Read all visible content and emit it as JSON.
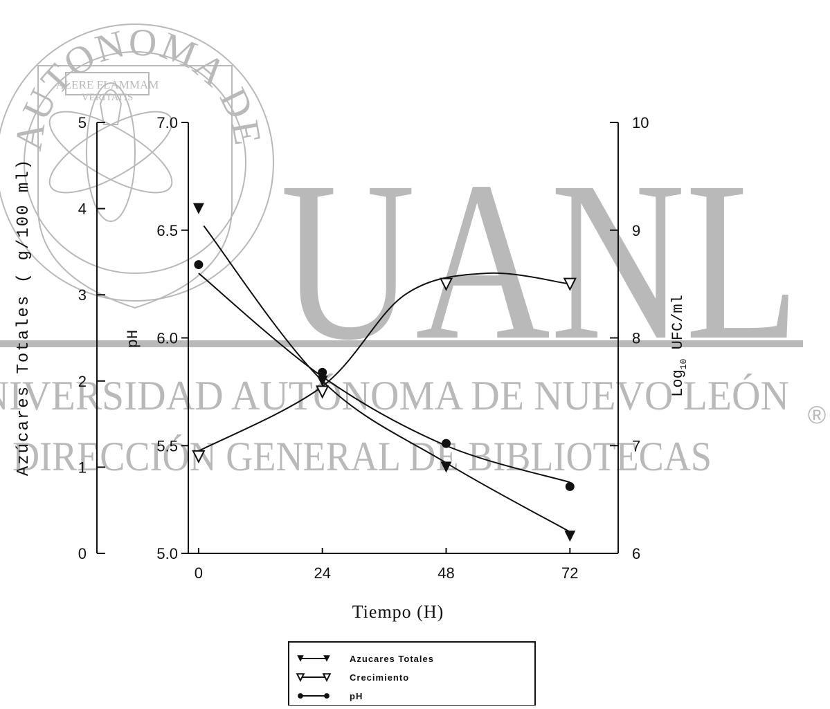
{
  "watermark": {
    "seal_ring_text": "AUTONOMA DE NUEVO LEON",
    "seal_motto_top": "ALERE FLAMMAM",
    "seal_motto_bottom": "VERITATIS",
    "big_letters": "UANL",
    "line1": "UNIVERSIDAD AUTÓNOMA DE NUEVO LEÓN",
    "line2": "DIRECCIÓN GENERAL DE BIBLIOTECAS",
    "registered": "®",
    "color": "#b9b9b9"
  },
  "chart_data": {
    "type": "line",
    "x": [
      0,
      24,
      48,
      72
    ],
    "xticks": [
      "0",
      "24",
      "48",
      "72"
    ],
    "xlabel": "Tiempo (H)",
    "xlim": [
      -2,
      78
    ],
    "axes": {
      "sugar": {
        "label": "Azúcares Totales ( g/100 ml)",
        "lim": [
          0,
          5
        ],
        "ticks": [
          "0",
          "1",
          "2",
          "3",
          "4",
          "5"
        ]
      },
      "ph": {
        "label": "pH",
        "lim": [
          5.0,
          7.0
        ],
        "ticks": [
          "5.0",
          "5.5",
          "6.0",
          "6.5",
          "7.0"
        ]
      },
      "log": {
        "label_main": "Log",
        "label_sub": "10",
        "label_rest": " UFC/ml",
        "lim": [
          6,
          10
        ],
        "ticks": [
          "6",
          "7",
          "8",
          "9",
          "10"
        ]
      }
    },
    "series": [
      {
        "name": "Azucares Totales",
        "axis": "sugar",
        "marker": "filled-down-triangle",
        "values": [
          4.0,
          2.0,
          1.0,
          0.2
        ],
        "curve": [
          [
            1,
            3.8
          ],
          [
            24,
            2.0
          ],
          [
            48,
            1.05
          ],
          [
            72,
            0.25
          ]
        ]
      },
      {
        "name": "Crecimiento",
        "axis": "log",
        "marker": "open-down-triangle",
        "values": [
          6.9,
          7.5,
          8.5,
          8.5
        ],
        "curve": [
          [
            0,
            6.95
          ],
          [
            24,
            7.55
          ],
          [
            40,
            8.4
          ],
          [
            56,
            8.6
          ],
          [
            72,
            8.5
          ]
        ]
      },
      {
        "name": "pH",
        "axis": "ph",
        "marker": "filled-circle",
        "values": [
          6.34,
          5.84,
          5.51,
          5.31
        ],
        "curve": [
          [
            0,
            6.3
          ],
          [
            24,
            5.82
          ],
          [
            48,
            5.5
          ],
          [
            72,
            5.33
          ]
        ]
      }
    ],
    "legend_position": "bottom-center",
    "grid": false
  }
}
